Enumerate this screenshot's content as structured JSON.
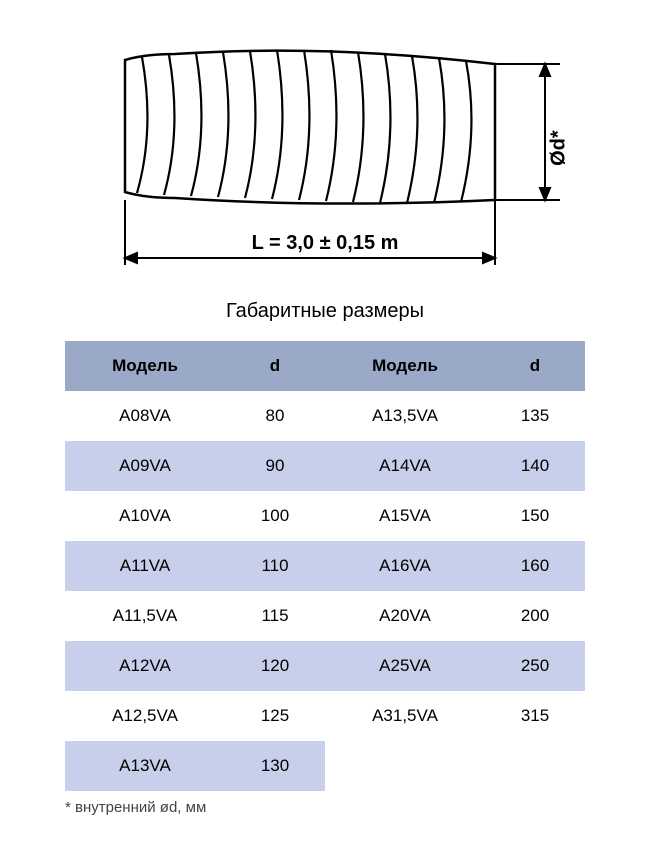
{
  "diagram": {
    "length_label": "L = 3,0 ± 0,15 m",
    "diameter_label": "Ød*",
    "stroke_color": "#000000",
    "stroke_width": 2,
    "duct_fill": "#ffffff"
  },
  "table": {
    "title": "Габаритные размеры",
    "header_bg": "#9aa9c8",
    "row_even_bg": "#ffffff",
    "row_odd_bg": "#c8cfea",
    "text_color": "#000000",
    "columns": [
      "Модель",
      "d",
      "Модель",
      "d"
    ],
    "rows": [
      [
        "A08VA",
        "80",
        "A13,5VA",
        "135"
      ],
      [
        "A09VA",
        "90",
        "A14VA",
        "140"
      ],
      [
        "A10VA",
        "100",
        "A15VA",
        "150"
      ],
      [
        "A11VA",
        "110",
        "A16VA",
        "160"
      ],
      [
        "A11,5VA",
        "115",
        "A20VA",
        "200"
      ],
      [
        "A12VA",
        "120",
        "A25VA",
        "250"
      ],
      [
        "A12,5VA",
        "125",
        "A31,5VA",
        "315"
      ],
      [
        "A13VA",
        "130",
        "",
        ""
      ]
    ]
  },
  "footnote": "* внутренний ød, мм"
}
